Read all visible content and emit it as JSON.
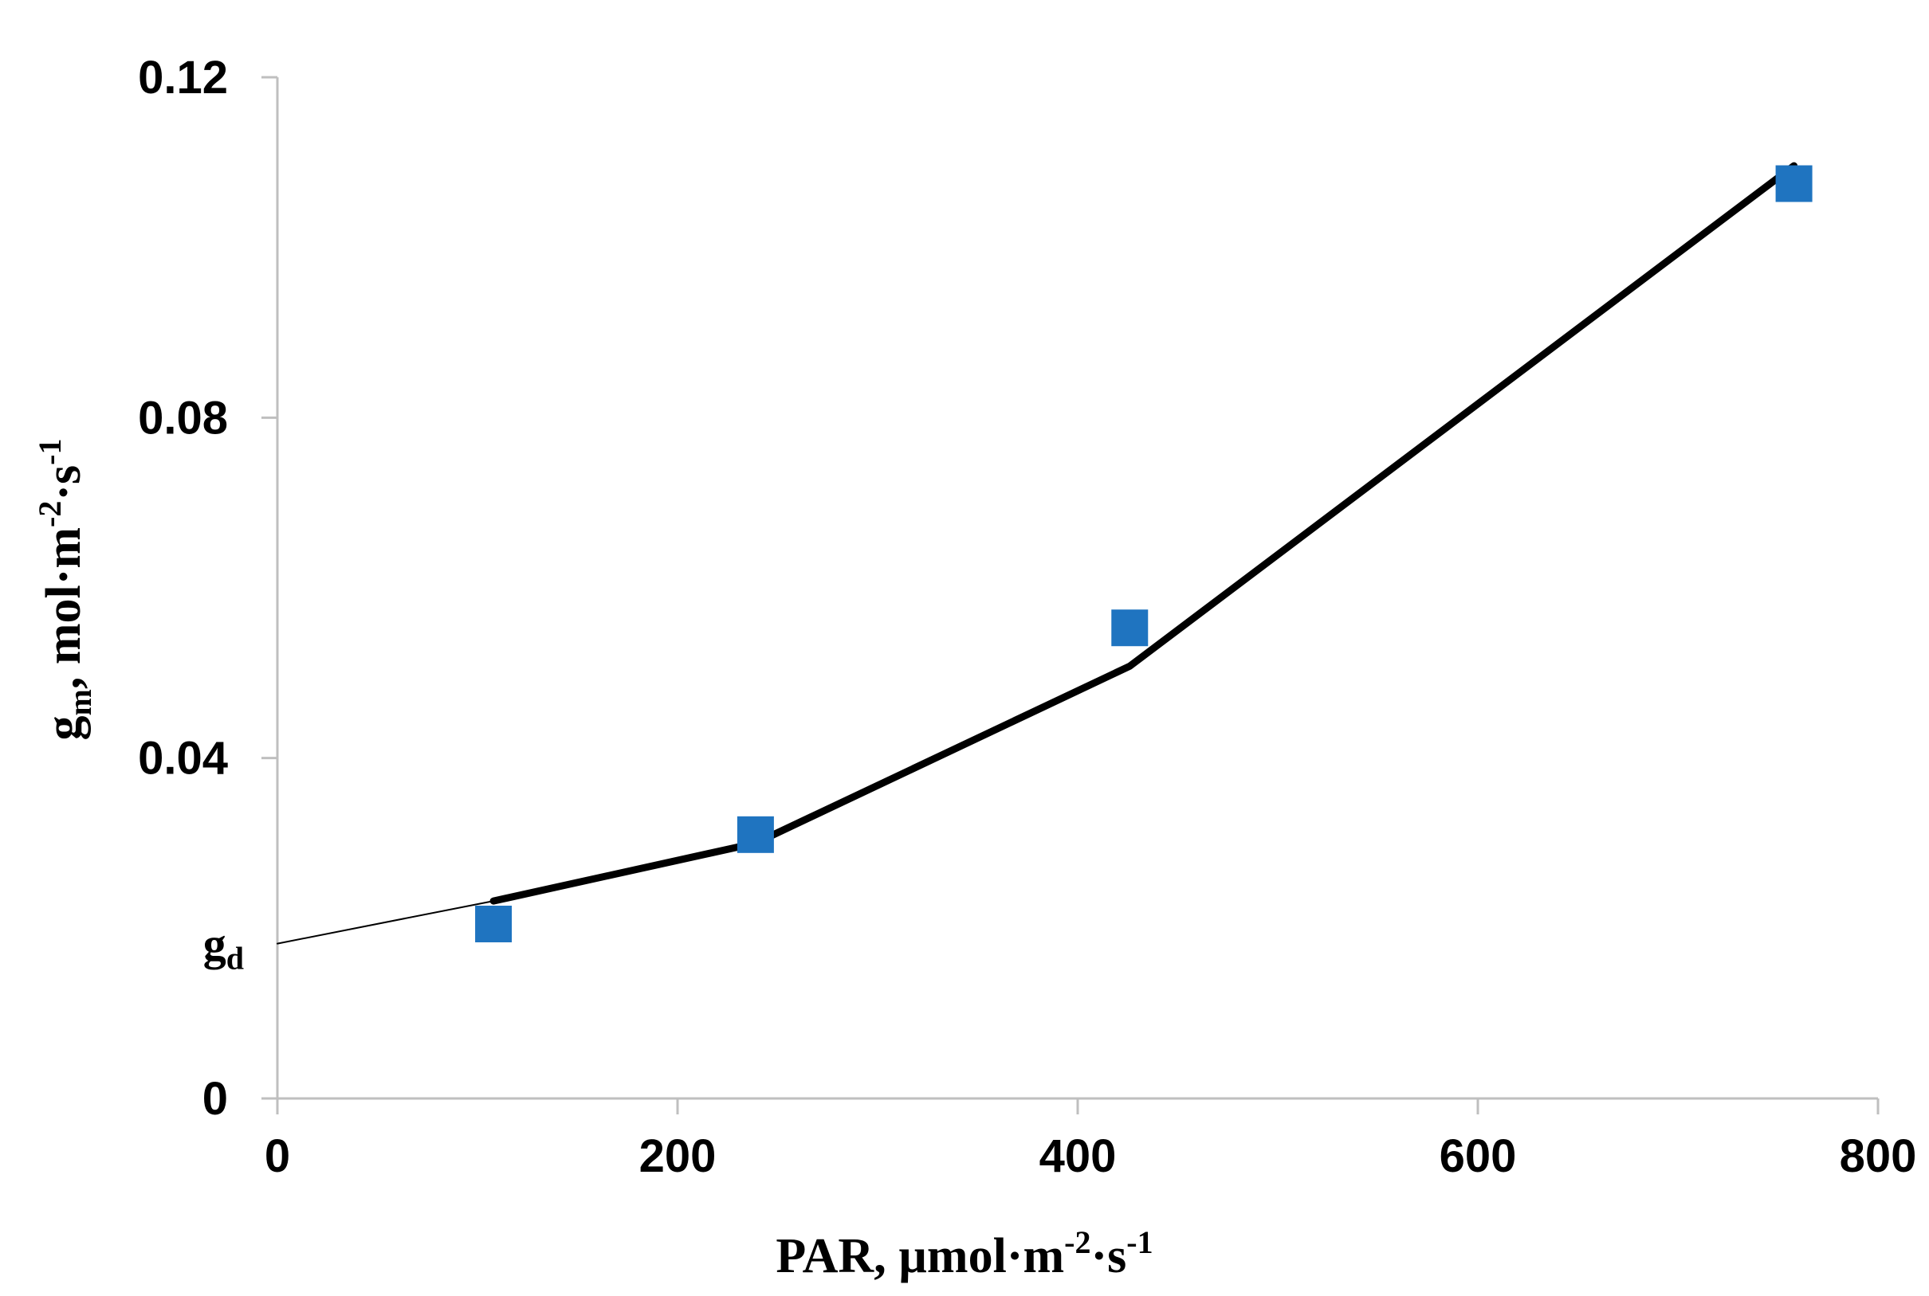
{
  "chart_data": {
    "type": "scatter",
    "xlabel": {
      "main": "PAR, µmol·m",
      "exp1": "-2",
      "mid": "·s",
      "exp2": "-1"
    },
    "ylabel": {
      "main": "g",
      "sub": "m",
      "unit": ", mol·m",
      "exp1": "-2",
      "mid": "·s",
      "exp2": "-1"
    },
    "xlim": [
      0,
      800
    ],
    "ylim": [
      0,
      0.12
    ],
    "x_ticks": [
      0,
      200,
      400,
      600,
      800
    ],
    "x_tick_labels": [
      "0",
      "200",
      "400",
      "600",
      "800"
    ],
    "y_ticks": [
      0,
      0.04,
      0.08,
      0.12
    ],
    "y_tick_labels": [
      "0",
      "0.04",
      "0.08",
      "0.12"
    ],
    "grid": false,
    "series": [
      {
        "type": "scatter",
        "marker": "square",
        "color": "#1f74c0",
        "points": [
          {
            "x": 108,
            "y": 0.0205
          },
          {
            "x": 239,
            "y": 0.031
          },
          {
            "x": 426,
            "y": 0.0553
          },
          {
            "x": 758,
            "y": 0.1075
          }
        ]
      },
      {
        "type": "line",
        "color": "#000000",
        "style": "thick",
        "points": [
          {
            "x": 108,
            "y": 0.0232
          },
          {
            "x": 239,
            "y": 0.03
          },
          {
            "x": 426,
            "y": 0.0508
          },
          {
            "x": 758,
            "y": 0.1096
          }
        ]
      },
      {
        "type": "line",
        "color": "#000000",
        "style": "thin",
        "points": [
          {
            "x": 0,
            "y": 0.0182
          },
          {
            "x": 108,
            "y": 0.0232
          }
        ]
      }
    ],
    "annotations": [
      {
        "text": "g",
        "sub": "d",
        "at": {
          "x": 0,
          "y": 0.0182
        },
        "placement": "left-of-y-axis"
      }
    ]
  }
}
